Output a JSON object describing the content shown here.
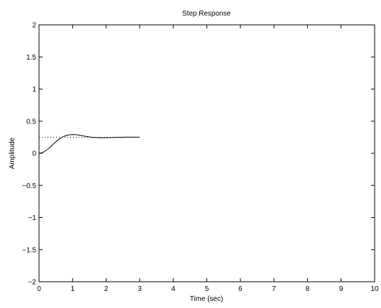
{
  "chart_data": {
    "type": "line",
    "title": "Step Response",
    "xlabel": "Time (sec)",
    "ylabel": "Amplitude",
    "xlim": [
      0,
      10
    ],
    "ylim": [
      -2,
      2
    ],
    "xticks": [
      0,
      1,
      2,
      3,
      4,
      5,
      6,
      7,
      8,
      9,
      10
    ],
    "yticks": [
      -2,
      -1.5,
      -1,
      -0.5,
      0,
      0.5,
      1,
      1.5,
      2
    ],
    "xtick_labels": [
      "0",
      "1",
      "2",
      "3",
      "4",
      "5",
      "6",
      "7",
      "8",
      "9",
      "10"
    ],
    "ytick_labels": [
      "−2",
      "−1.5",
      "−1",
      "−0.5",
      "0",
      "0.5",
      "1",
      "1.5",
      "2"
    ],
    "grid": false,
    "series": [
      {
        "style": "solid",
        "color": "#000000",
        "x": [
          0,
          0.1,
          0.2,
          0.3,
          0.4,
          0.5,
          0.6,
          0.7,
          0.8,
          0.9,
          1.0,
          1.1,
          1.2,
          1.3,
          1.4,
          1.5,
          1.6,
          1.7,
          1.8,
          1.9,
          2.0,
          2.2,
          2.4,
          2.6,
          2.8,
          3.0
        ],
        "y": [
          0,
          0.01,
          0.04,
          0.08,
          0.13,
          0.18,
          0.22,
          0.255,
          0.275,
          0.288,
          0.292,
          0.29,
          0.283,
          0.273,
          0.263,
          0.254,
          0.248,
          0.244,
          0.242,
          0.242,
          0.243,
          0.246,
          0.249,
          0.251,
          0.251,
          0.25
        ]
      },
      {
        "style": "dotted",
        "color": "#000000",
        "x": [
          0,
          3.0
        ],
        "y": [
          0.25,
          0.25
        ]
      }
    ]
  }
}
